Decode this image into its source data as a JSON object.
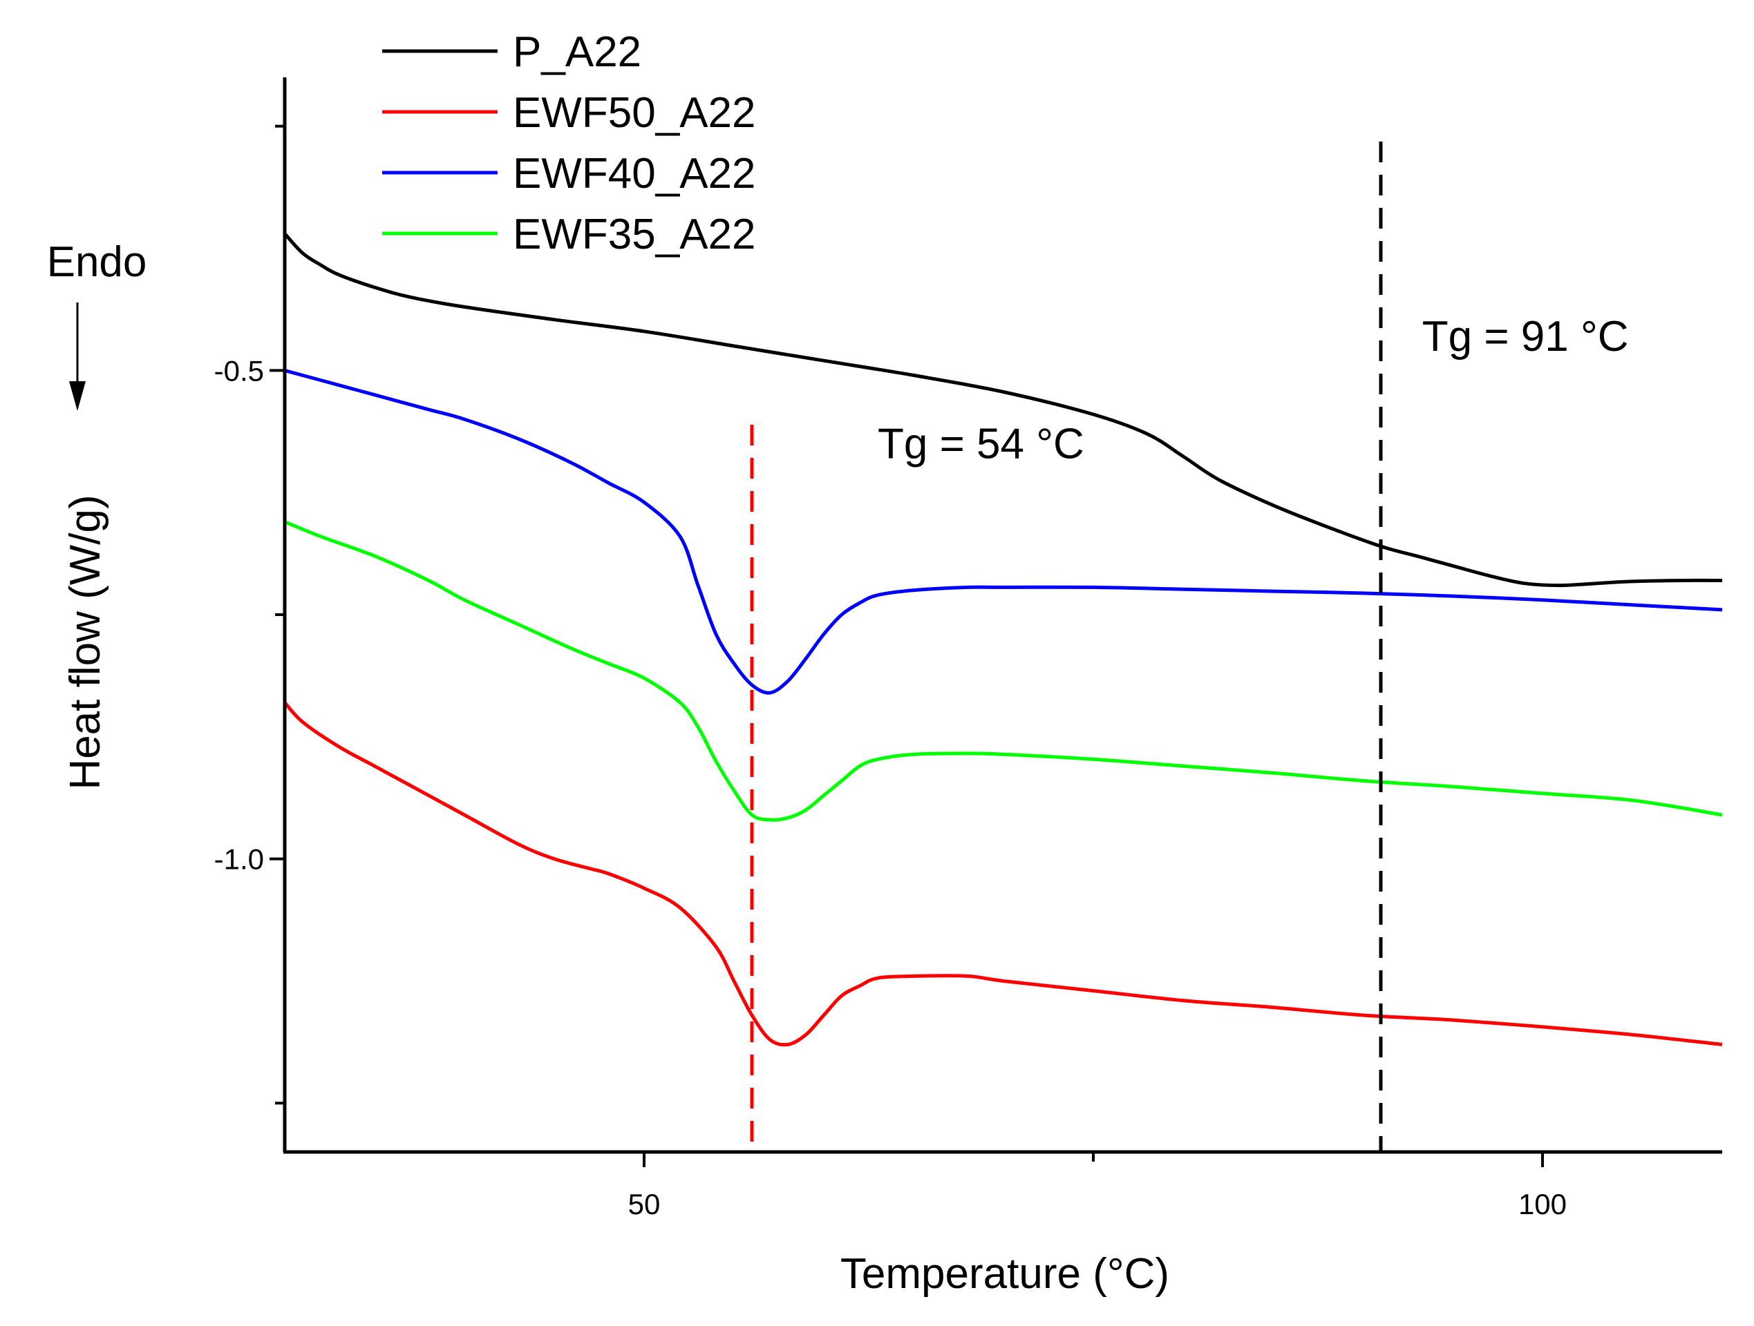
{
  "chart_data": {
    "type": "line",
    "title": "",
    "xlabel": "Temperature (°C)",
    "ylabel": "Heat flow (W/g)",
    "xlim": [
      30,
      110
    ],
    "ylim": [
      -1.3,
      -0.2
    ],
    "x_ticks": [
      50,
      100
    ],
    "x_tick_labels": [
      "50",
      "100"
    ],
    "y_ticks": [
      -0.5,
      -1.0
    ],
    "y_tick_labels": [
      "-0.5",
      "-1.0"
    ],
    "grid": false,
    "legend_position": "top-left",
    "series": [
      {
        "name": "P_A22",
        "color": "#000000",
        "x": [
          30,
          31,
          32,
          33,
          35,
          37,
          40,
          45,
          50,
          55,
          60,
          65,
          70,
          75,
          78,
          80,
          82,
          85,
          88,
          91,
          93,
          95,
          97,
          99,
          101,
          103,
          105,
          108,
          110
        ],
        "y": [
          -0.36,
          -0.38,
          -0.392,
          -0.402,
          -0.415,
          -0.425,
          -0.435,
          -0.448,
          -0.46,
          -0.475,
          -0.49,
          -0.505,
          -0.522,
          -0.545,
          -0.565,
          -0.588,
          -0.612,
          -0.638,
          -0.66,
          -0.68,
          -0.69,
          -0.7,
          -0.71,
          -0.718,
          -0.72,
          -0.718,
          -0.716,
          -0.715,
          -0.715
        ]
      },
      {
        "name": "EWF50_A22",
        "color": "#ff0000",
        "x": [
          30,
          31,
          33,
          35,
          37,
          40,
          43,
          45,
          47,
          48,
          50,
          52,
          54,
          55,
          56,
          57,
          58,
          59,
          60,
          61,
          62,
          63,
          65,
          68,
          70,
          75,
          80,
          85,
          90,
          95,
          100,
          105,
          110
        ],
        "y": [
          -0.84,
          -0.86,
          -0.885,
          -0.905,
          -0.925,
          -0.955,
          -0.985,
          -1.0,
          -1.01,
          -1.015,
          -1.03,
          -1.05,
          -1.09,
          -1.125,
          -1.16,
          -1.185,
          -1.19,
          -1.18,
          -1.16,
          -1.14,
          -1.13,
          -1.122,
          -1.12,
          -1.12,
          -1.125,
          -1.135,
          -1.145,
          -1.152,
          -1.16,
          -1.165,
          -1.172,
          -1.18,
          -1.19
        ]
      },
      {
        "name": "EWF40_A22",
        "color": "#0000ff",
        "x": [
          30,
          32,
          35,
          38,
          40,
          43,
          46,
          48,
          50,
          52,
          53,
          54,
          55,
          56,
          57,
          58,
          59,
          60,
          61,
          62,
          63,
          65,
          68,
          70,
          75,
          80,
          85,
          90,
          95,
          100,
          105,
          110
        ],
        "y": [
          -0.5,
          -0.51,
          -0.525,
          -0.54,
          -0.55,
          -0.57,
          -0.595,
          -0.615,
          -0.635,
          -0.67,
          -0.72,
          -0.77,
          -0.8,
          -0.822,
          -0.83,
          -0.818,
          -0.795,
          -0.77,
          -0.75,
          -0.738,
          -0.73,
          -0.725,
          -0.722,
          -0.722,
          -0.722,
          -0.724,
          -0.726,
          -0.728,
          -0.731,
          -0.735,
          -0.74,
          -0.745
        ]
      },
      {
        "name": "EWF35_A22",
        "color": "#00ff00",
        "x": [
          30,
          32,
          35,
          38,
          40,
          43,
          46,
          48,
          50,
          52,
          53,
          54,
          55,
          56,
          57,
          58,
          59,
          60,
          61,
          62,
          63,
          65,
          68,
          70,
          75,
          80,
          85,
          90,
          95,
          100,
          105,
          110
        ],
        "y": [
          -0.655,
          -0.67,
          -0.69,
          -0.715,
          -0.735,
          -0.76,
          -0.785,
          -0.8,
          -0.815,
          -0.84,
          -0.865,
          -0.9,
          -0.93,
          -0.955,
          -0.96,
          -0.958,
          -0.95,
          -0.935,
          -0.92,
          -0.905,
          -0.898,
          -0.893,
          -0.892,
          -0.893,
          -0.898,
          -0.905,
          -0.912,
          -0.92,
          -0.926,
          -0.933,
          -0.94,
          -0.955
        ]
      }
    ],
    "vertical_markers": [
      {
        "name": "Tg-54-marker",
        "x": 56,
        "color": "#ff0000",
        "label": "Tg = 54 °C",
        "label_x": 63,
        "label_y": -0.59
      },
      {
        "name": "Tg-91-marker",
        "x": 91,
        "color": "#000000",
        "label": "Tg = 91 °C",
        "label_x": 93.3,
        "label_y": -0.48
      }
    ],
    "side_annotation": {
      "text": "Endo",
      "direction": "down"
    }
  }
}
